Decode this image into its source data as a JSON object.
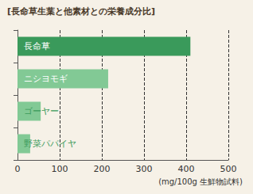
{
  "chart_data": {
    "type": "bar",
    "orientation": "horizontal",
    "title": "[長命草生葉と他素材との栄養成分比]",
    "x_label": "(mg/100g 生鮮物試料)",
    "categories": [
      "長命草",
      "ニシヨモギ",
      "ゴーヤー",
      "野菜パパイヤ"
    ],
    "values": [
      410,
      215,
      55,
      30
    ],
    "colors": [
      "#3a9a5b",
      "#82c995",
      "#82c995",
      "#82c995"
    ],
    "xlim": [
      0,
      500
    ],
    "xticks": [
      0,
      100,
      200,
      300,
      400,
      500
    ],
    "grid": true
  }
}
